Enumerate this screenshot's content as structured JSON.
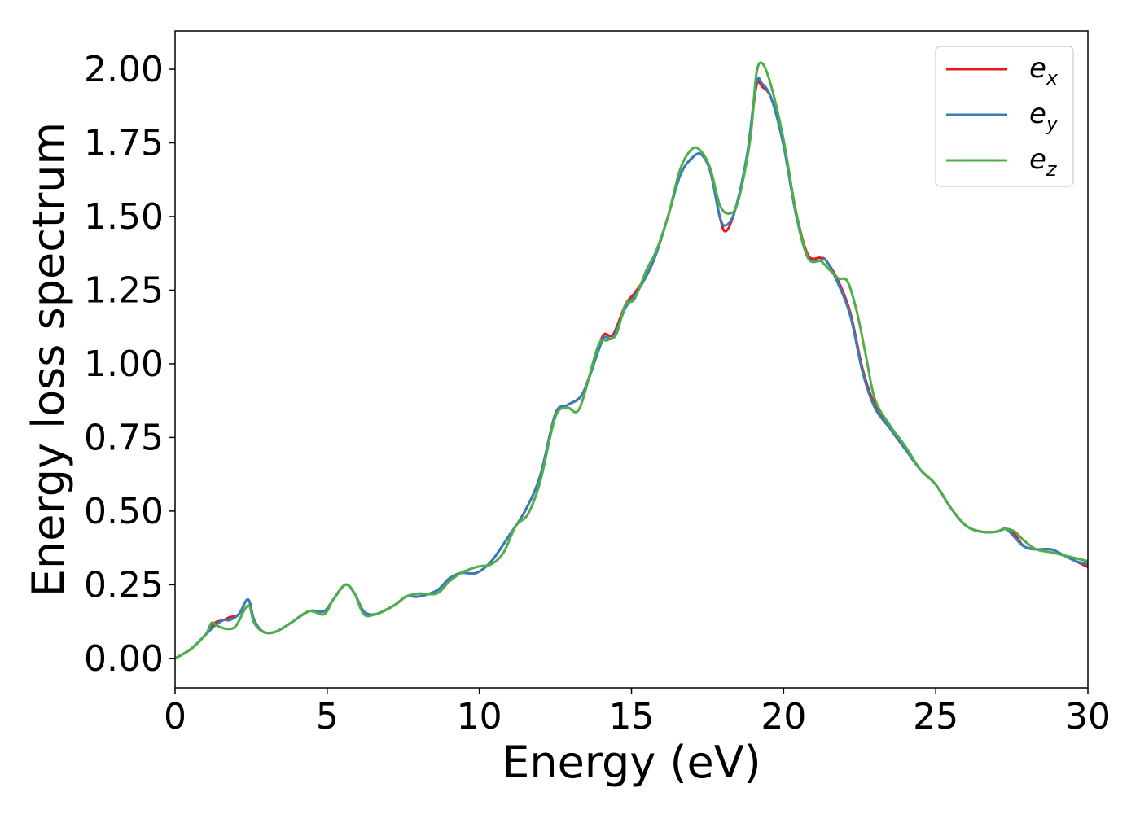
{
  "chart_data": {
    "type": "line",
    "xlabel": "Energy (eV)",
    "ylabel": "Energy loss spectrum",
    "xlim": [
      0,
      30
    ],
    "ylim": [
      -0.1,
      2.13
    ],
    "xticks": [
      0,
      5,
      10,
      15,
      20,
      25,
      30
    ],
    "xtick_labels": [
      "0",
      "5",
      "10",
      "15",
      "20",
      "25",
      "30"
    ],
    "yticks": [
      0.0,
      0.25,
      0.5,
      0.75,
      1.0,
      1.25,
      1.5,
      1.75,
      2.0
    ],
    "ytick_labels": [
      "0.00",
      "0.25",
      "0.50",
      "0.75",
      "1.00",
      "1.25",
      "1.50",
      "1.75",
      "2.00"
    ],
    "grid": false,
    "legend_position": "top-right",
    "series": [
      {
        "name": "e",
        "subscript": "x",
        "color": "#e41a1c",
        "x": [
          0,
          0.5,
          1.0,
          1.3,
          1.6,
          1.8,
          2.1,
          2.4,
          2.6,
          2.9,
          3.3,
          3.8,
          4.4,
          4.9,
          5.2,
          5.6,
          5.9,
          6.2,
          6.6,
          7.2,
          7.6,
          8.0,
          8.6,
          9.0,
          9.4,
          9.9,
          10.4,
          11.0,
          11.5,
          12.0,
          12.5,
          12.9,
          13.4,
          13.9,
          14.1,
          14.4,
          14.8,
          15.1,
          15.5,
          15.8,
          16.2,
          16.6,
          17.0,
          17.3,
          17.6,
          17.9,
          18.1,
          18.4,
          18.8,
          19.1,
          19.3,
          19.6,
          20.0,
          20.4,
          20.8,
          21.2,
          21.4,
          21.8,
          22.2,
          22.6,
          23.0,
          23.5,
          24.0,
          24.5,
          25.0,
          25.5,
          26.0,
          26.5,
          27.0,
          27.3,
          27.6,
          27.9,
          28.3,
          28.8,
          29.2,
          29.6,
          30.0
        ],
        "y": [
          0.0,
          0.03,
          0.08,
          0.12,
          0.13,
          0.14,
          0.15,
          0.2,
          0.13,
          0.09,
          0.09,
          0.12,
          0.16,
          0.16,
          0.2,
          0.25,
          0.22,
          0.16,
          0.15,
          0.18,
          0.21,
          0.21,
          0.23,
          0.27,
          0.29,
          0.29,
          0.33,
          0.42,
          0.5,
          0.62,
          0.83,
          0.86,
          0.9,
          1.05,
          1.1,
          1.1,
          1.2,
          1.24,
          1.3,
          1.37,
          1.5,
          1.64,
          1.7,
          1.71,
          1.65,
          1.5,
          1.45,
          1.52,
          1.7,
          1.94,
          1.94,
          1.9,
          1.75,
          1.52,
          1.37,
          1.36,
          1.35,
          1.28,
          1.17,
          0.98,
          0.86,
          0.78,
          0.71,
          0.64,
          0.59,
          0.51,
          0.45,
          0.43,
          0.43,
          0.44,
          0.42,
          0.38,
          0.37,
          0.37,
          0.35,
          0.33,
          0.31
        ]
      },
      {
        "name": "e",
        "subscript": "y",
        "color": "#377eb8",
        "x": [
          0,
          0.5,
          1.0,
          1.3,
          1.6,
          1.8,
          2.1,
          2.4,
          2.6,
          2.9,
          3.3,
          3.8,
          4.4,
          4.9,
          5.2,
          5.6,
          5.9,
          6.2,
          6.6,
          7.2,
          7.6,
          8.0,
          8.6,
          9.0,
          9.4,
          9.9,
          10.4,
          11.0,
          11.5,
          12.0,
          12.5,
          12.9,
          13.4,
          13.9,
          14.1,
          14.4,
          14.8,
          15.1,
          15.5,
          15.8,
          16.2,
          16.6,
          17.0,
          17.3,
          17.6,
          17.9,
          18.1,
          18.4,
          18.8,
          19.1,
          19.3,
          19.6,
          20.0,
          20.4,
          20.8,
          21.2,
          21.4,
          21.8,
          22.2,
          22.6,
          23.0,
          23.5,
          24.0,
          24.5,
          25.0,
          25.5,
          26.0,
          26.5,
          27.0,
          27.3,
          27.6,
          27.9,
          28.3,
          28.8,
          29.2,
          29.6,
          30.0
        ],
        "y": [
          0.0,
          0.03,
          0.08,
          0.11,
          0.13,
          0.13,
          0.15,
          0.2,
          0.13,
          0.09,
          0.09,
          0.12,
          0.16,
          0.16,
          0.2,
          0.25,
          0.22,
          0.16,
          0.15,
          0.18,
          0.21,
          0.21,
          0.23,
          0.27,
          0.29,
          0.29,
          0.33,
          0.42,
          0.5,
          0.62,
          0.83,
          0.86,
          0.9,
          1.04,
          1.09,
          1.09,
          1.19,
          1.23,
          1.3,
          1.37,
          1.5,
          1.64,
          1.7,
          1.71,
          1.65,
          1.5,
          1.47,
          1.52,
          1.71,
          1.95,
          1.95,
          1.9,
          1.74,
          1.51,
          1.36,
          1.35,
          1.35,
          1.27,
          1.16,
          0.97,
          0.85,
          0.78,
          0.71,
          0.64,
          0.59,
          0.51,
          0.45,
          0.43,
          0.43,
          0.44,
          0.41,
          0.38,
          0.37,
          0.37,
          0.35,
          0.33,
          0.32
        ]
      },
      {
        "name": "e",
        "subscript": "z",
        "color": "#4daf4a",
        "x": [
          0,
          0.5,
          1.0,
          1.2,
          1.4,
          1.7,
          2.0,
          2.4,
          2.6,
          2.9,
          3.3,
          3.8,
          4.4,
          4.9,
          5.2,
          5.6,
          5.9,
          6.2,
          6.6,
          7.2,
          7.6,
          8.0,
          8.6,
          9.0,
          9.4,
          9.9,
          10.4,
          10.8,
          11.2,
          11.6,
          12.0,
          12.5,
          12.9,
          13.3,
          13.9,
          14.2,
          14.5,
          14.8,
          15.1,
          15.5,
          15.8,
          16.2,
          16.6,
          17.0,
          17.3,
          17.6,
          17.9,
          18.2,
          18.5,
          18.9,
          19.1,
          19.3,
          19.6,
          20.0,
          20.4,
          20.8,
          21.2,
          21.5,
          21.8,
          22.1,
          22.4,
          22.7,
          23.0,
          23.5,
          24.0,
          24.5,
          25.0,
          25.5,
          26.0,
          26.5,
          27.0,
          27.3,
          27.6,
          27.9,
          28.3,
          28.8,
          29.2,
          29.6,
          30.0
        ],
        "y": [
          0.0,
          0.03,
          0.08,
          0.12,
          0.11,
          0.1,
          0.11,
          0.18,
          0.12,
          0.09,
          0.09,
          0.12,
          0.16,
          0.15,
          0.2,
          0.25,
          0.22,
          0.15,
          0.15,
          0.18,
          0.21,
          0.22,
          0.22,
          0.26,
          0.29,
          0.31,
          0.32,
          0.36,
          0.45,
          0.49,
          0.6,
          0.82,
          0.85,
          0.85,
          1.06,
          1.08,
          1.1,
          1.2,
          1.22,
          1.32,
          1.38,
          1.5,
          1.66,
          1.73,
          1.72,
          1.66,
          1.54,
          1.51,
          1.55,
          1.76,
          1.98,
          2.02,
          1.94,
          1.76,
          1.52,
          1.36,
          1.35,
          1.32,
          1.29,
          1.28,
          1.18,
          1.03,
          0.88,
          0.79,
          0.72,
          0.64,
          0.59,
          0.51,
          0.45,
          0.43,
          0.43,
          0.44,
          0.43,
          0.4,
          0.37,
          0.36,
          0.35,
          0.34,
          0.33
        ]
      }
    ]
  }
}
